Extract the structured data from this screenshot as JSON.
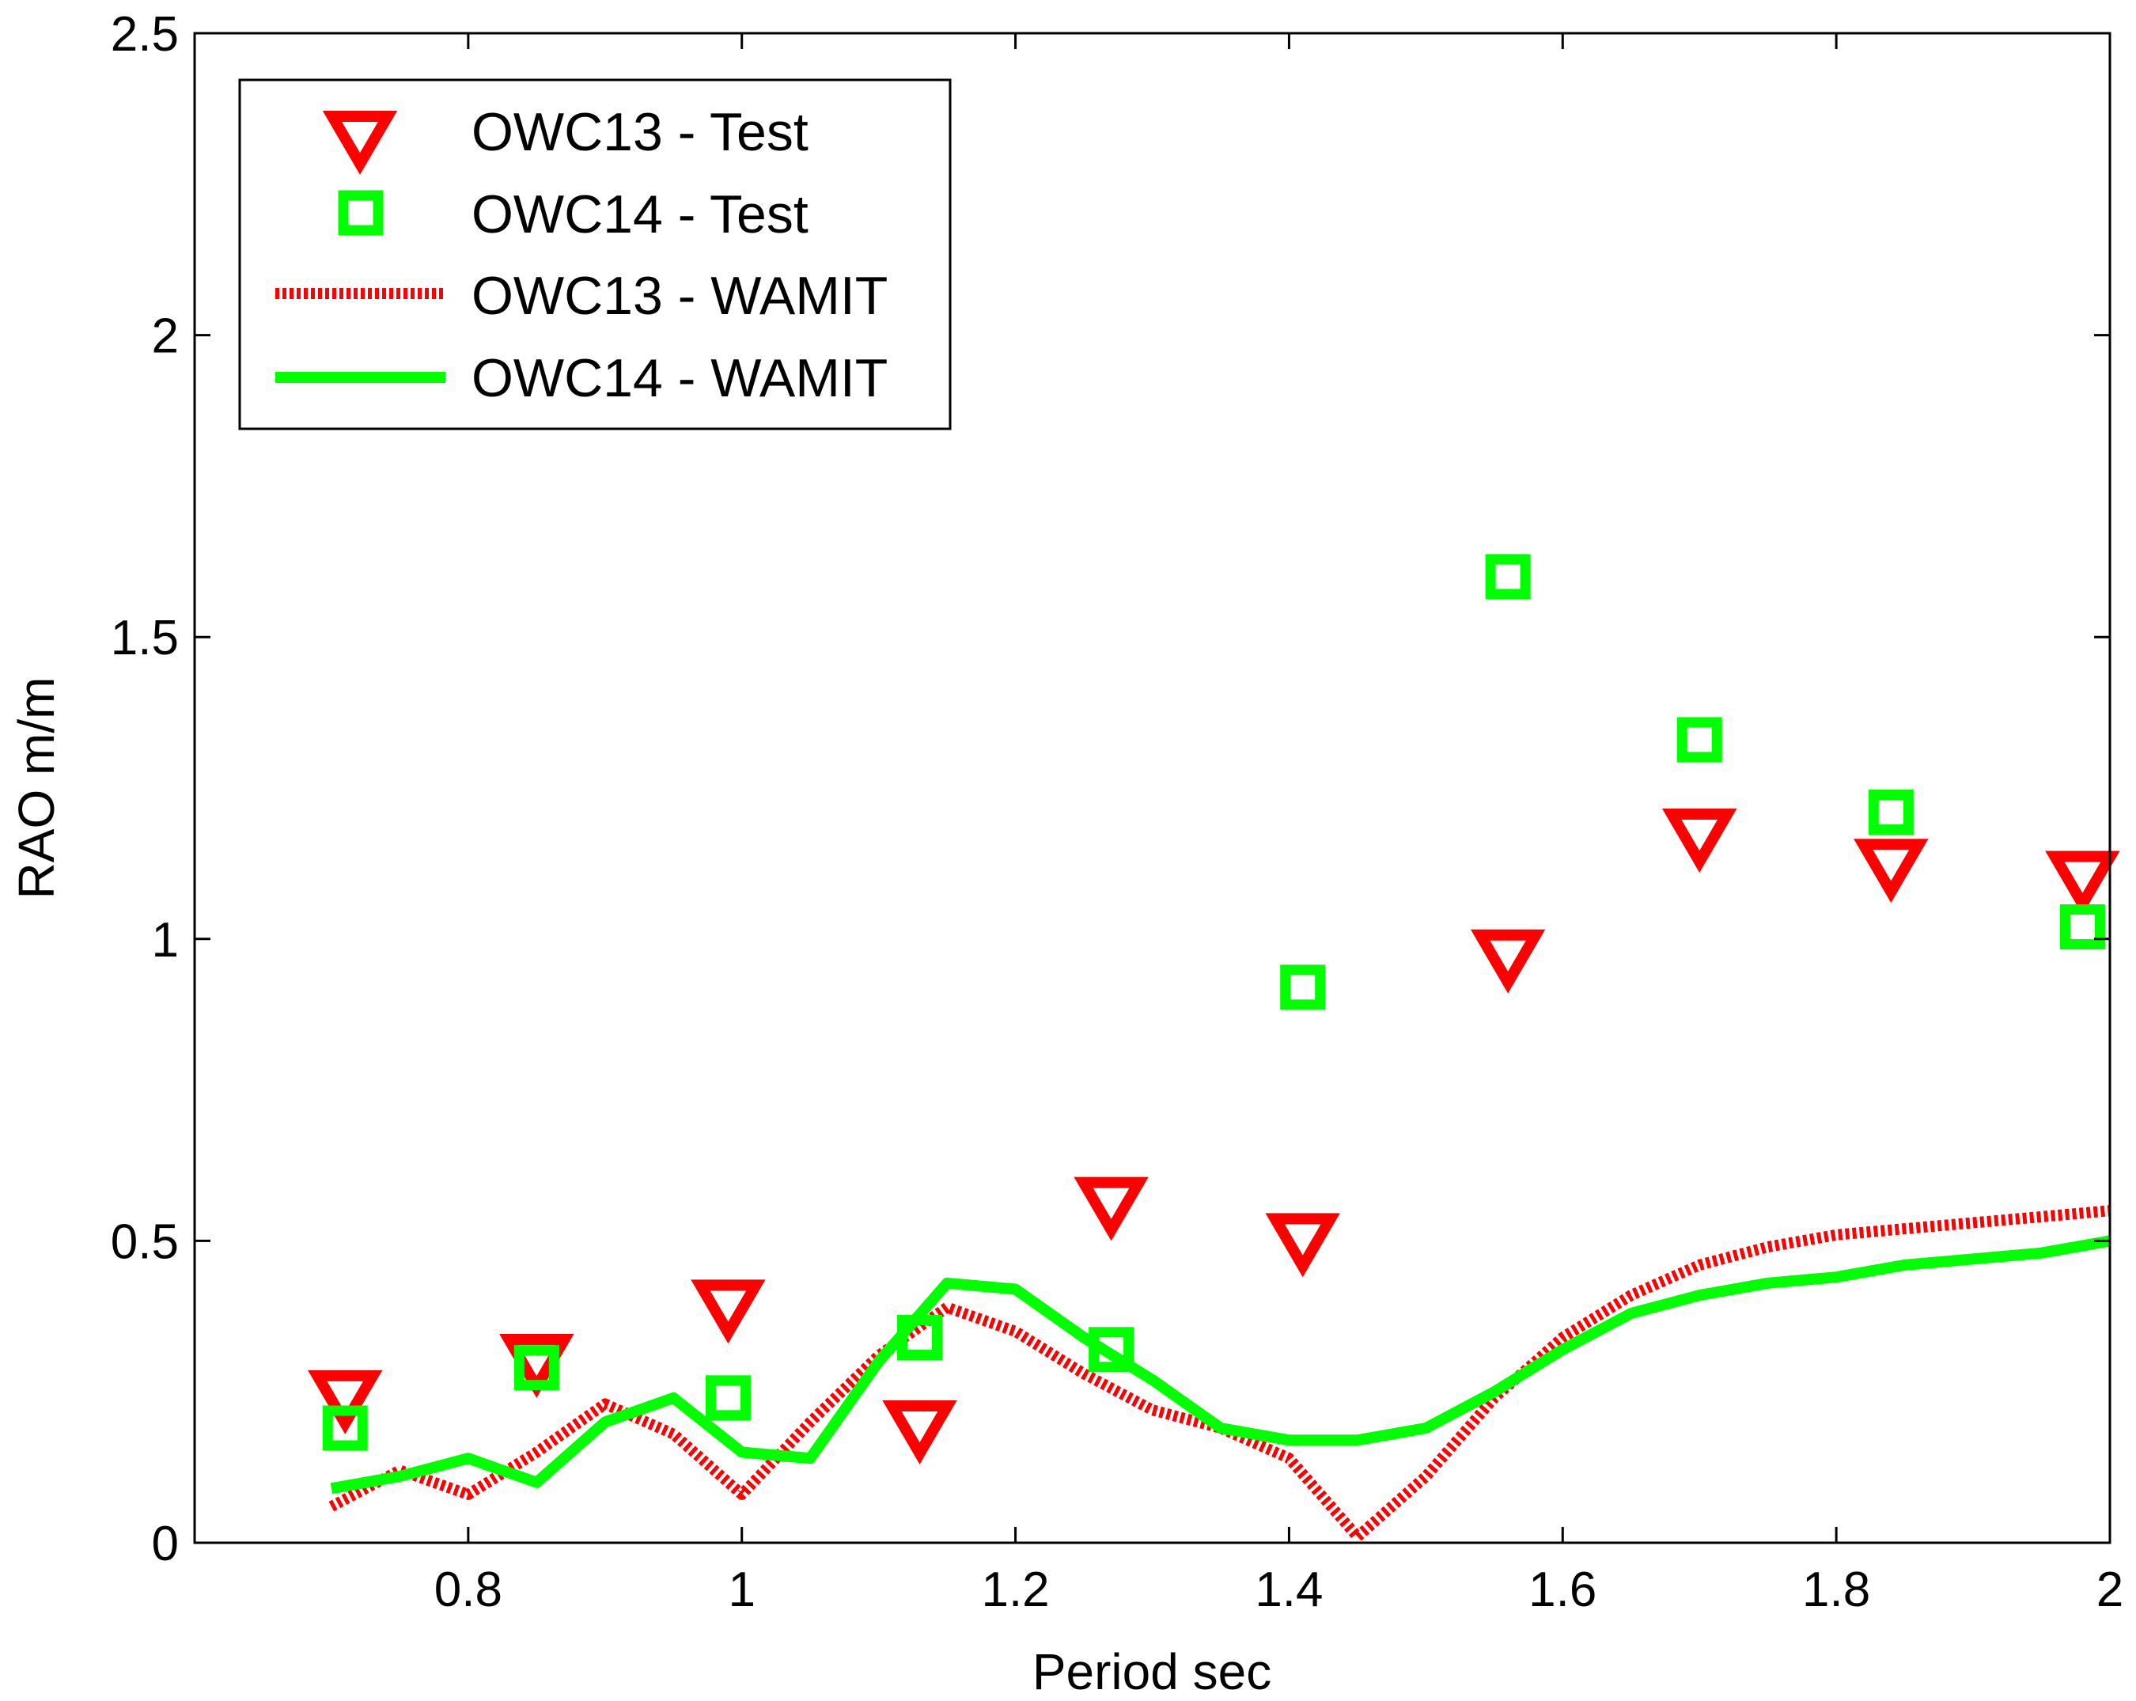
{
  "chart_data": {
    "type": "line",
    "title": "",
    "xlabel": "Period sec",
    "ylabel": "RAO m/m",
    "xlim": [
      0.6,
      2.0
    ],
    "ylim": [
      0,
      2.5
    ],
    "xticks": [
      0.8,
      1,
      1.2,
      1.4,
      1.6,
      1.8,
      2
    ],
    "xtick_labels": [
      "0.8",
      "1",
      "1.2",
      "1.4",
      "1.6",
      "1.8",
      "2"
    ],
    "yticks": [
      0,
      0.5,
      1,
      1.5,
      2,
      2.5
    ],
    "ytick_labels": [
      "0",
      "0.5",
      "1",
      "1.5",
      "2",
      "2.5"
    ],
    "grid": false,
    "legend_position": "top-left",
    "series": [
      {
        "name": "OWC13 - Test",
        "kind": "scatter",
        "marker": "triangle-down",
        "color": "#ff0000",
        "x": [
          0.71,
          0.85,
          0.99,
          1.13,
          1.27,
          1.41,
          1.56,
          1.7,
          1.84,
          1.98
        ],
        "y": [
          0.24,
          0.3,
          0.39,
          0.19,
          0.56,
          0.5,
          0.97,
          1.17,
          1.12,
          1.1
        ]
      },
      {
        "name": "OWC14 - Test",
        "kind": "scatter",
        "marker": "square",
        "color": "#00ff00",
        "x": [
          0.71,
          0.85,
          0.99,
          1.13,
          1.27,
          1.41,
          1.56,
          1.7,
          1.84,
          1.98
        ],
        "y": [
          0.19,
          0.29,
          0.24,
          0.34,
          0.32,
          0.92,
          1.6,
          1.33,
          1.21,
          1.02
        ]
      },
      {
        "name": "OWC13 - WAMIT",
        "kind": "line",
        "style": "dotted",
        "color": "#ff0000",
        "x": [
          0.7,
          0.75,
          0.8,
          0.85,
          0.9,
          0.95,
          1.0,
          1.05,
          1.1,
          1.15,
          1.2,
          1.25,
          1.3,
          1.35,
          1.4,
          1.45,
          1.5,
          1.55,
          1.6,
          1.65,
          1.7,
          1.75,
          1.8,
          1.85,
          1.9,
          1.95,
          2.0
        ],
        "y": [
          0.06,
          0.12,
          0.08,
          0.15,
          0.23,
          0.18,
          0.08,
          0.2,
          0.31,
          0.39,
          0.35,
          0.28,
          0.22,
          0.19,
          0.14,
          0.01,
          0.11,
          0.24,
          0.34,
          0.41,
          0.46,
          0.49,
          0.51,
          0.52,
          0.53,
          0.54,
          0.55
        ]
      },
      {
        "name": "OWC14 - WAMIT",
        "kind": "line",
        "style": "solid",
        "color": "#00ff00",
        "x": [
          0.7,
          0.75,
          0.8,
          0.85,
          0.9,
          0.95,
          1.0,
          1.05,
          1.1,
          1.15,
          1.2,
          1.25,
          1.3,
          1.35,
          1.4,
          1.45,
          1.5,
          1.55,
          1.6,
          1.65,
          1.7,
          1.75,
          1.8,
          1.85,
          1.9,
          1.95,
          2.0
        ],
        "y": [
          0.09,
          0.11,
          0.14,
          0.1,
          0.2,
          0.24,
          0.15,
          0.14,
          0.3,
          0.43,
          0.42,
          0.34,
          0.27,
          0.19,
          0.17,
          0.17,
          0.19,
          0.25,
          0.32,
          0.38,
          0.41,
          0.43,
          0.44,
          0.46,
          0.47,
          0.48,
          0.5
        ]
      }
    ]
  }
}
